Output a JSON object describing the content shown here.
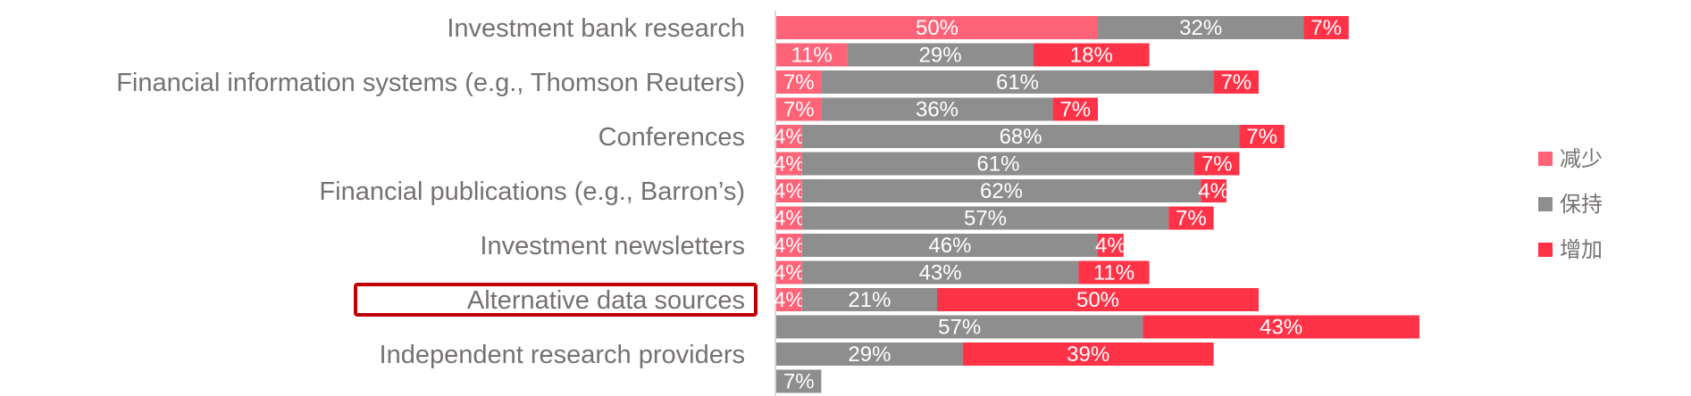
{
  "chart_data": {
    "type": "bar",
    "orientation": "horizontal",
    "stacked": true,
    "categories": [
      "Investment bank research",
      "Financial information systems (e.g., Thomson Reuters)",
      "Conferences",
      "Financial publications (e.g., Barron’s)",
      "Investment newsletters",
      "Alternative data sources",
      "Independent research providers"
    ],
    "highlighted_category": "Alternative data sources",
    "rows": [
      {
        "category_index": 0,
        "values": [
          50,
          32,
          7
        ]
      },
      {
        "category_index": null,
        "values": [
          11,
          29,
          18
        ]
      },
      {
        "category_index": 1,
        "values": [
          7,
          61,
          7
        ]
      },
      {
        "category_index": null,
        "values": [
          7,
          36,
          7
        ]
      },
      {
        "category_index": 2,
        "values": [
          4,
          68,
          7
        ]
      },
      {
        "category_index": null,
        "values": [
          4,
          61,
          7
        ]
      },
      {
        "category_index": 3,
        "values": [
          4,
          62,
          4
        ]
      },
      {
        "category_index": null,
        "values": [
          4,
          57,
          7
        ]
      },
      {
        "category_index": 4,
        "values": [
          4,
          46,
          4
        ]
      },
      {
        "category_index": null,
        "values": [
          4,
          43,
          11
        ]
      },
      {
        "category_index": 5,
        "values": [
          4,
          21,
          50
        ]
      },
      {
        "category_index": null,
        "values": [
          0,
          57,
          43
        ]
      },
      {
        "category_index": 6,
        "values": [
          0,
          29,
          39
        ]
      },
      {
        "category_index": null,
        "values": [
          0,
          7,
          0
        ]
      }
    ],
    "value_suffix": "%",
    "series": [
      {
        "name": "减少",
        "color": "#FF6378"
      },
      {
        "name": "保持",
        "color": "#8E8E8E"
      },
      {
        "name": "增加",
        "color": "#FF3347"
      }
    ],
    "xlim": [
      0,
      100
    ],
    "legend_position": "right",
    "grid": false,
    "colors": {
      "category_text": "#767171",
      "highlight_box": "#C00000",
      "axis": "#D9D9D9"
    }
  }
}
